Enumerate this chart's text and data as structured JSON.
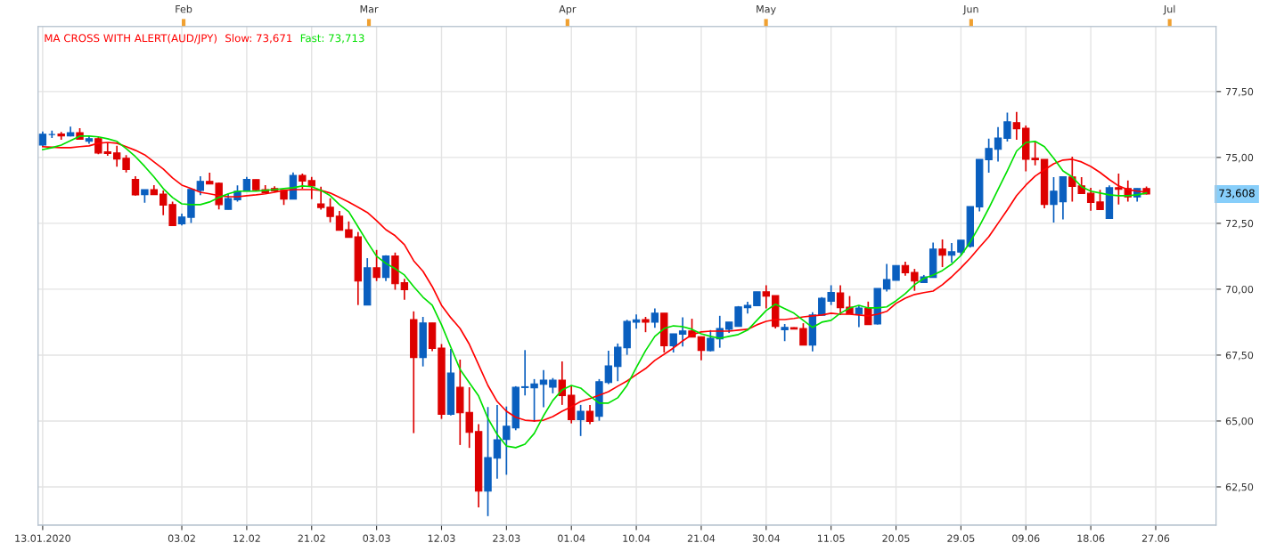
{
  "chart_data": {
    "type": "candlestick",
    "title": "MA CROSS WITH ALERT(AUD/JPY)",
    "categories": [
      "13.01.2020",
      null,
      null,
      null,
      null,
      null,
      null,
      null,
      null,
      null,
      null,
      null,
      null,
      null,
      null,
      "03.02",
      null,
      null,
      null,
      null,
      null,
      null,
      "12.02",
      null,
      null,
      null,
      null,
      null,
      null,
      "21.02",
      null,
      null,
      null,
      null,
      null,
      null,
      "03.03",
      null,
      null,
      null,
      null,
      null,
      null,
      "12.03",
      null,
      null,
      null,
      null,
      null,
      null,
      "23.03",
      null,
      null,
      null,
      null,
      null,
      null,
      "01.04",
      null,
      null,
      null,
      null,
      null,
      null,
      "10.04",
      null,
      null,
      null,
      null,
      null,
      null,
      "21.04",
      null,
      null,
      null,
      null,
      null,
      null,
      "30.04",
      null,
      null,
      null,
      null,
      null,
      null,
      "11.05",
      null,
      null,
      null,
      null,
      null,
      null,
      "20.05",
      null,
      null,
      null,
      null,
      null,
      null,
      "29.05",
      null,
      null,
      null,
      null,
      null,
      null,
      "09.06",
      null,
      null,
      null,
      null,
      null,
      null,
      "18.06",
      null,
      null,
      null,
      null,
      null,
      null,
      "27.06",
      null,
      null,
      null,
      null,
      null,
      null
    ],
    "ohlc": [
      [
        75.47,
        75.98,
        75.4,
        75.88
      ],
      [
        75.87,
        76.02,
        75.74,
        75.87
      ],
      [
        75.89,
        75.97,
        75.67,
        75.82
      ],
      [
        75.82,
        76.17,
        75.8,
        75.94
      ],
      [
        75.94,
        76.11,
        75.69,
        75.69
      ],
      [
        75.61,
        75.82,
        75.52,
        75.71
      ],
      [
        75.71,
        75.78,
        75.12,
        75.17
      ],
      [
        75.21,
        75.55,
        75.06,
        75.15
      ],
      [
        75.17,
        75.44,
        74.65,
        74.94
      ],
      [
        74.97,
        75.09,
        74.43,
        74.54
      ],
      [
        74.17,
        74.29,
        73.55,
        73.58
      ],
      [
        73.59,
        73.78,
        73.28,
        73.78
      ],
      [
        73.78,
        73.95,
        73.59,
        73.59
      ],
      [
        73.61,
        73.75,
        72.81,
        73.19
      ],
      [
        73.21,
        73.32,
        72.41,
        72.41
      ],
      [
        72.48,
        72.87,
        72.42,
        72.74
      ],
      [
        72.73,
        73.79,
        72.51,
        73.79
      ],
      [
        73.75,
        74.29,
        73.57,
        74.09
      ],
      [
        74.09,
        74.42,
        73.99,
        73.99
      ],
      [
        74.02,
        74.05,
        73.03,
        73.21
      ],
      [
        73.03,
        73.64,
        73.03,
        73.44
      ],
      [
        73.39,
        73.94,
        73.32,
        73.72
      ],
      [
        73.72,
        74.26,
        73.72,
        74.17
      ],
      [
        74.16,
        74.16,
        73.72,
        73.77
      ],
      [
        73.78,
        73.95,
        73.64,
        73.66
      ],
      [
        73.82,
        73.91,
        73.69,
        73.73
      ],
      [
        73.75,
        73.78,
        73.2,
        73.42
      ],
      [
        73.42,
        74.43,
        73.42,
        74.32
      ],
      [
        74.32,
        74.39,
        73.81,
        74.1
      ],
      [
        74.12,
        74.26,
        73.42,
        73.92
      ],
      [
        73.24,
        73.89,
        73.02,
        73.1
      ],
      [
        73.11,
        73.45,
        72.54,
        72.76
      ],
      [
        72.77,
        72.97,
        72.24,
        72.24
      ],
      [
        72.26,
        72.57,
        71.97,
        71.97
      ],
      [
        71.99,
        72.17,
        69.4,
        70.31
      ],
      [
        69.4,
        71.18,
        69.4,
        70.81
      ],
      [
        70.81,
        71.49,
        70.31,
        70.45
      ],
      [
        70.45,
        71.29,
        70.31,
        71.26
      ],
      [
        71.26,
        71.39,
        69.98,
        70.21
      ],
      [
        70.25,
        70.39,
        69.6,
        69.98
      ],
      [
        68.85,
        69.16,
        64.54,
        67.41
      ],
      [
        67.41,
        68.95,
        67.07,
        68.72
      ],
      [
        68.72,
        68.72,
        67.65,
        67.75
      ],
      [
        67.77,
        67.92,
        65.08,
        65.25
      ],
      [
        65.25,
        67.73,
        65.21,
        66.82
      ],
      [
        66.28,
        67.33,
        64.09,
        65.31
      ],
      [
        65.33,
        66.28,
        63.98,
        64.57
      ],
      [
        64.6,
        64.88,
        61.72,
        62.34
      ],
      [
        62.34,
        65.53,
        61.39,
        63.61
      ],
      [
        63.59,
        65.61,
        62.81,
        64.29
      ],
      [
        64.3,
        65.55,
        62.96,
        64.8
      ],
      [
        64.74,
        66.32,
        64.65,
        66.28
      ],
      [
        66.27,
        67.69,
        65.97,
        66.3
      ],
      [
        66.26,
        66.59,
        64.97,
        66.41
      ],
      [
        66.39,
        66.93,
        65.52,
        66.55
      ],
      [
        66.28,
        66.63,
        66.05,
        66.55
      ],
      [
        66.55,
        67.26,
        65.61,
        65.96
      ],
      [
        65.98,
        66.34,
        64.91,
        65.05
      ],
      [
        65.05,
        65.61,
        64.43,
        65.37
      ],
      [
        65.37,
        65.61,
        64.88,
        64.98
      ],
      [
        65.18,
        66.59,
        65.01,
        66.49
      ],
      [
        66.46,
        67.67,
        66.4,
        67.09
      ],
      [
        67.07,
        67.94,
        66.51,
        67.8
      ],
      [
        67.78,
        68.84,
        67.51,
        68.78
      ],
      [
        68.75,
        69.04,
        68.5,
        68.84
      ],
      [
        68.85,
        68.95,
        68.37,
        68.75
      ],
      [
        68.75,
        69.27,
        68.54,
        69.09
      ],
      [
        69.09,
        69.09,
        67.6,
        67.85
      ],
      [
        67.85,
        68.31,
        67.6,
        68.31
      ],
      [
        68.29,
        68.93,
        67.83,
        68.42
      ],
      [
        68.42,
        68.88,
        68.18,
        68.18
      ],
      [
        68.2,
        68.2,
        67.3,
        67.68
      ],
      [
        67.67,
        68.45,
        67.64,
        68.14
      ],
      [
        68.12,
        68.99,
        67.78,
        68.51
      ],
      [
        68.48,
        68.75,
        68.34,
        68.75
      ],
      [
        68.59,
        69.36,
        68.59,
        69.33
      ],
      [
        69.3,
        69.52,
        69.08,
        69.39
      ],
      [
        69.37,
        69.9,
        69.37,
        69.9
      ],
      [
        69.9,
        70.15,
        69.27,
        69.74
      ],
      [
        69.76,
        69.76,
        68.51,
        68.59
      ],
      [
        68.46,
        68.68,
        68.03,
        68.55
      ],
      [
        68.54,
        68.55,
        68.48,
        68.49
      ],
      [
        68.51,
        68.71,
        67.88,
        67.88
      ],
      [
        67.88,
        69.13,
        67.64,
        69.02
      ],
      [
        69.01,
        69.7,
        69.01,
        69.66
      ],
      [
        69.54,
        70.15,
        69.4,
        69.88
      ],
      [
        69.86,
        70.15,
        69.02,
        69.3
      ],
      [
        69.32,
        69.74,
        69.06,
        69.06
      ],
      [
        69.06,
        69.36,
        68.56,
        69.29
      ],
      [
        69.27,
        69.53,
        68.66,
        68.66
      ],
      [
        68.68,
        70.03,
        68.66,
        70.03
      ],
      [
        70.01,
        70.96,
        69.91,
        70.37
      ],
      [
        70.34,
        70.9,
        70.34,
        70.9
      ],
      [
        70.9,
        71.04,
        70.51,
        70.62
      ],
      [
        70.64,
        70.77,
        69.94,
        70.31
      ],
      [
        70.25,
        70.54,
        70.25,
        70.47
      ],
      [
        70.45,
        71.77,
        70.45,
        71.52
      ],
      [
        71.52,
        71.89,
        70.84,
        71.29
      ],
      [
        71.29,
        71.75,
        71.01,
        71.42
      ],
      [
        71.41,
        71.86,
        71.29,
        71.86
      ],
      [
        71.63,
        73.14,
        71.58,
        73.14
      ],
      [
        73.12,
        74.93,
        72.95,
        74.93
      ],
      [
        74.91,
        75.71,
        74.42,
        75.34
      ],
      [
        75.31,
        76.15,
        74.84,
        75.74
      ],
      [
        75.72,
        76.7,
        75.6,
        76.35
      ],
      [
        76.32,
        76.73,
        75.67,
        76.09
      ],
      [
        76.11,
        76.21,
        74.47,
        74.93
      ],
      [
        74.97,
        75.57,
        74.7,
        74.91
      ],
      [
        74.93,
        74.93,
        73.07,
        73.22
      ],
      [
        73.22,
        74.25,
        72.53,
        73.72
      ],
      [
        73.32,
        74.27,
        72.65,
        74.27
      ],
      [
        74.26,
        75.03,
        73.32,
        73.9
      ],
      [
        73.92,
        74.25,
        73.63,
        73.63
      ],
      [
        73.64,
        73.85,
        72.98,
        73.29
      ],
      [
        73.31,
        73.77,
        73.02,
        73.02
      ],
      [
        72.68,
        73.94,
        72.68,
        73.85
      ],
      [
        73.85,
        74.39,
        73.21,
        73.79
      ],
      [
        73.82,
        74.13,
        73.32,
        73.5
      ],
      [
        73.5,
        73.82,
        73.32,
        73.82
      ],
      [
        73.82,
        73.9,
        73.59,
        73.61
      ],
      null,
      null,
      null,
      null,
      null,
      null,
      null
    ],
    "colors": [
      "#0a5fbf",
      "#0a5fbf",
      "#dd0000",
      "#0a5fbf",
      "#dd0000",
      "#0a5fbf",
      "#dd0000",
      "#dd0000",
      "#dd0000",
      "#dd0000",
      "#dd0000",
      "#0a5fbf",
      "#dd0000",
      "#dd0000",
      "#dd0000",
      "#0a5fbf",
      "#0a5fbf",
      "#0a5fbf",
      "#dd0000",
      "#dd0000",
      "#0a5fbf",
      "#0a5fbf",
      "#0a5fbf",
      "#dd0000",
      "#dd0000",
      "#dd0000",
      "#dd0000",
      "#0a5fbf",
      "#dd0000",
      "#dd0000",
      "#dd0000",
      "#dd0000",
      "#dd0000",
      "#dd0000",
      "#dd0000",
      "#0a5fbf",
      "#dd0000",
      "#0a5fbf",
      "#dd0000",
      "#dd0000",
      "#dd0000",
      "#0a5fbf",
      "#dd0000",
      "#dd0000",
      "#0a5fbf",
      "#dd0000",
      "#dd0000",
      "#dd0000",
      "#0a5fbf",
      "#0a5fbf",
      "#0a5fbf",
      "#0a5fbf",
      "#0a5fbf",
      "#0a5fbf",
      "#0a5fbf",
      "#0a5fbf",
      "#dd0000",
      "#dd0000",
      "#0a5fbf",
      "#dd0000",
      "#0a5fbf",
      "#0a5fbf",
      "#0a5fbf",
      "#0a5fbf",
      "#0a5fbf",
      "#dd0000",
      "#0a5fbf",
      "#dd0000",
      "#0a5fbf",
      "#0a5fbf",
      "#dd0000",
      "#dd0000",
      "#0a5fbf",
      "#0a5fbf",
      "#0a5fbf",
      "#0a5fbf",
      "#0a5fbf",
      "#0a5fbf",
      "#dd0000",
      "#dd0000",
      "#0a5fbf",
      "#dd0000",
      "#dd0000",
      "#0a5fbf",
      "#0a5fbf",
      "#0a5fbf",
      "#dd0000",
      "#dd0000",
      "#0a5fbf",
      "#dd0000",
      "#0a5fbf",
      "#0a5fbf",
      "#0a5fbf",
      "#dd0000",
      "#dd0000",
      "#0a5fbf",
      "#0a5fbf",
      "#dd0000",
      "#0a5fbf",
      "#0a5fbf",
      "#0a5fbf",
      "#0a5fbf",
      "#0a5fbf",
      "#0a5fbf",
      "#0a5fbf",
      "#dd0000",
      "#dd0000",
      "#dd0000",
      "#dd0000",
      "#0a5fbf",
      "#0a5fbf",
      "#dd0000",
      "#dd0000",
      "#dd0000",
      "#dd0000",
      "#0a5fbf",
      "#dd0000",
      "#dd0000",
      "#0a5fbf",
      "#dd0000",
      null,
      null,
      null,
      null,
      null,
      null,
      null
    ],
    "series": [
      {
        "type": "line",
        "name": "Slow: 73,671",
        "color": "#ff0000",
        "values": [
          75.41,
          75.39,
          75.37,
          75.37,
          75.41,
          75.44,
          75.54,
          75.57,
          75.54,
          75.41,
          75.27,
          75.1,
          74.83,
          74.56,
          74.22,
          73.95,
          73.82,
          73.68,
          73.62,
          73.55,
          73.51,
          73.51,
          73.55,
          73.58,
          73.62,
          73.68,
          73.75,
          73.78,
          73.78,
          73.78,
          73.75,
          73.65,
          73.48,
          73.31,
          73.11,
          72.91,
          72.6,
          72.26,
          72.03,
          71.69,
          71.08,
          70.68,
          70.1,
          69.39,
          68.92,
          68.51,
          67.91,
          67.13,
          66.35,
          65.74,
          65.37,
          65.14,
          65.03,
          65.0,
          65.03,
          65.17,
          65.37,
          65.54,
          65.74,
          65.85,
          65.98,
          66.11,
          66.32,
          66.52,
          66.76,
          66.99,
          67.3,
          67.53,
          67.77,
          68.04,
          68.28,
          68.38,
          68.41,
          68.41,
          68.41,
          68.45,
          68.48,
          68.65,
          68.78,
          68.85,
          68.85,
          68.89,
          68.95,
          68.99,
          69.02,
          69.09,
          69.05,
          69.05,
          69.02,
          68.99,
          69.05,
          69.16,
          69.46,
          69.66,
          69.8,
          69.87,
          69.93,
          70.17,
          70.47,
          70.81,
          71.18,
          71.59,
          71.99,
          72.5,
          73.01,
          73.55,
          73.95,
          74.29,
          74.53,
          74.76,
          74.9,
          74.93,
          74.83,
          74.66,
          74.43,
          74.16,
          73.92,
          73.78,
          73.72,
          73.68,
          null,
          null,
          null,
          null,
          null,
          null,
          null
        ]
      },
      {
        "type": "line",
        "name": "Fast: 73,713",
        "color": "#00e000",
        "values": [
          75.3,
          75.37,
          75.47,
          75.64,
          75.81,
          75.81,
          75.78,
          75.71,
          75.61,
          75.34,
          75.03,
          74.66,
          74.26,
          73.82,
          73.48,
          73.24,
          73.21,
          73.21,
          73.31,
          73.48,
          73.62,
          73.72,
          73.72,
          73.72,
          73.75,
          73.78,
          73.82,
          73.85,
          73.92,
          73.89,
          73.75,
          73.55,
          73.21,
          72.94,
          72.37,
          71.79,
          71.25,
          70.98,
          70.78,
          70.54,
          70.1,
          69.7,
          69.39,
          68.65,
          67.8,
          66.96,
          66.45,
          65.95,
          65.1,
          64.49,
          64.05,
          63.99,
          64.12,
          64.53,
          65.2,
          65.78,
          66.18,
          66.35,
          66.25,
          65.95,
          65.68,
          65.68,
          65.88,
          66.35,
          67.03,
          67.67,
          68.21,
          68.51,
          68.61,
          68.58,
          68.48,
          68.31,
          68.21,
          68.14,
          68.21,
          68.28,
          68.45,
          68.82,
          69.19,
          69.43,
          69.26,
          69.09,
          68.82,
          68.55,
          68.75,
          68.82,
          69.09,
          69.29,
          69.39,
          69.29,
          69.29,
          69.33,
          69.56,
          69.83,
          70.17,
          70.41,
          70.54,
          70.71,
          70.95,
          71.28,
          71.79,
          72.4,
          73.07,
          73.78,
          74.49,
          75.24,
          75.57,
          75.61,
          75.41,
          74.97,
          74.49,
          74.26,
          73.89,
          73.72,
          73.65,
          73.58,
          73.55,
          73.55,
          73.58,
          73.65,
          null,
          null,
          null,
          null,
          null,
          null,
          null
        ]
      }
    ],
    "legend": "top left",
    "ylim": [
      61.05,
      79.97
    ],
    "yticks": [
      {
        "value": 62.5,
        "label": "62,50"
      },
      {
        "value": 65,
        "label": "65,00"
      },
      {
        "value": 67.5,
        "label": "67,50"
      },
      {
        "value": 70,
        "label": "70,00"
      },
      {
        "value": 72.5,
        "label": "72,50"
      },
      {
        "value": 75,
        "label": "75,00"
      },
      {
        "value": 77.5,
        "label": "77,50"
      }
    ],
    "x2lim": [
      "2020-01-12",
      "2020-07-08"
    ],
    "x2ticks": [
      {
        "value": "2020-02-03",
        "label": "Feb"
      },
      {
        "value": "2020-03-02",
        "label": "Mar"
      },
      {
        "value": "2020-04-01",
        "label": "Apr"
      },
      {
        "value": "2020-05-01",
        "label": "May"
      },
      {
        "value": "2020-06-01",
        "label": "Jun"
      },
      {
        "value": "2020-07-01",
        "label": "Jul"
      }
    ],
    "grid": true,
    "annotations": [
      "73,608"
    ]
  }
}
